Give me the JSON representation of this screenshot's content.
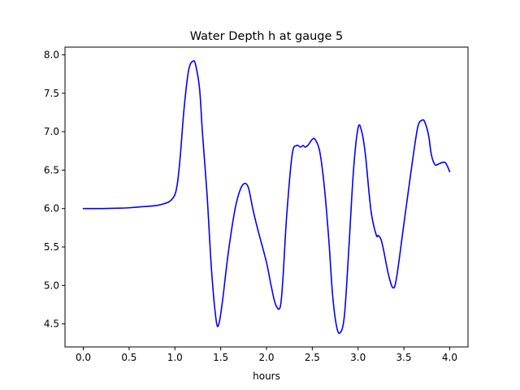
{
  "chart_data": {
    "type": "line",
    "title": "Water Depth h at gauge 5",
    "xlabel": "hours",
    "ylabel": "",
    "xlim": [
      -0.2,
      4.2
    ],
    "ylim": [
      4.2,
      8.1
    ],
    "grid": false,
    "x_ticks": [
      0.0,
      0.5,
      1.0,
      1.5,
      2.0,
      2.5,
      3.0,
      3.5,
      4.0
    ],
    "x_tick_labels": [
      "0.0",
      "0.5",
      "1.0",
      "1.5",
      "2.0",
      "2.5",
      "3.0",
      "3.5",
      "4.0"
    ],
    "y_ticks": [
      4.5,
      5.0,
      5.5,
      6.0,
      6.5,
      7.0,
      7.5,
      8.0
    ],
    "y_tick_labels": [
      "4.5",
      "5.0",
      "5.5",
      "6.0",
      "6.5",
      "7.0",
      "7.5",
      "8.0"
    ],
    "series": [
      {
        "color": "#0000ff",
        "x": [
          0.0,
          0.2,
          0.4,
          0.5,
          0.6,
          0.8,
          0.9,
          0.95,
          1.0,
          1.03,
          1.06,
          1.1,
          1.15,
          1.2,
          1.23,
          1.27,
          1.3,
          1.35,
          1.4,
          1.45,
          1.48,
          1.52,
          1.58,
          1.65,
          1.7,
          1.75,
          1.8,
          1.85,
          1.9,
          2.0,
          2.05,
          2.1,
          2.15,
          2.18,
          2.22,
          2.28,
          2.33,
          2.37,
          2.4,
          2.42,
          2.45,
          2.5,
          2.53,
          2.58,
          2.63,
          2.68,
          2.72,
          2.76,
          2.8,
          2.85,
          2.9,
          2.95,
          3.0,
          3.04,
          3.08,
          3.12,
          3.15,
          3.2,
          3.22,
          3.25,
          3.28,
          3.33,
          3.38,
          3.42,
          3.5,
          3.58,
          3.65,
          3.7,
          3.73,
          3.77,
          3.8,
          3.84,
          3.88,
          3.95,
          4.0
        ],
        "y": [
          6.0,
          6.0,
          6.005,
          6.01,
          6.02,
          6.04,
          6.07,
          6.1,
          6.18,
          6.35,
          6.7,
          7.3,
          7.8,
          7.92,
          7.85,
          7.55,
          7.0,
          6.2,
          5.2,
          4.55,
          4.5,
          4.8,
          5.4,
          5.95,
          6.2,
          6.32,
          6.28,
          6.0,
          5.75,
          5.3,
          5.0,
          4.75,
          4.72,
          5.1,
          5.9,
          6.7,
          6.82,
          6.8,
          6.82,
          6.8,
          6.82,
          6.9,
          6.9,
          6.75,
          6.3,
          5.6,
          4.9,
          4.5,
          4.38,
          4.6,
          5.5,
          6.5,
          7.05,
          7.0,
          6.7,
          6.2,
          5.9,
          5.65,
          5.65,
          5.6,
          5.45,
          5.15,
          4.97,
          5.1,
          5.8,
          6.5,
          7.05,
          7.15,
          7.12,
          6.95,
          6.7,
          6.57,
          6.58,
          6.6,
          6.48
        ]
      }
    ]
  }
}
